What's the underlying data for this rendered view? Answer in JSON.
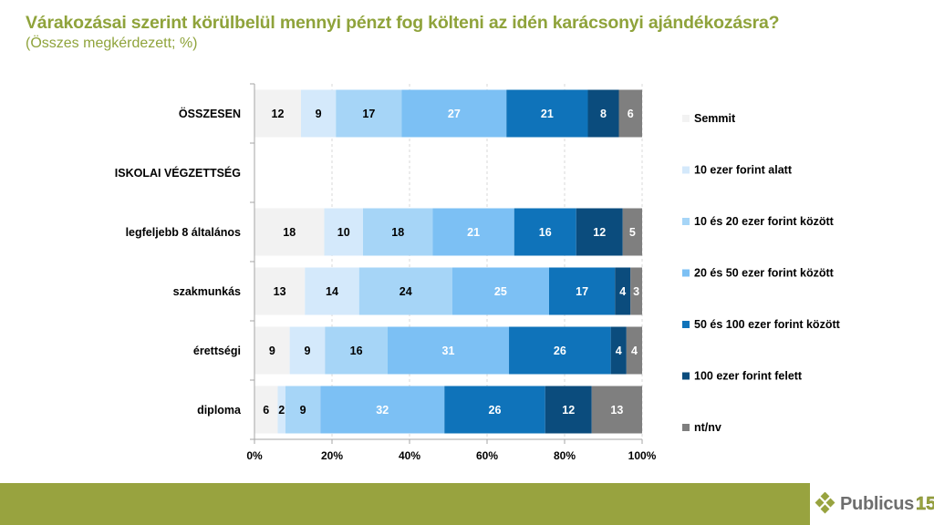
{
  "header": {
    "title": "Várakozásai szerint körülbelül mennyi pénzt fog költeni az idén karácsonyi ajándékozásra?",
    "subtitle": "(Összes megkérdezett; %)"
  },
  "footer": {
    "logo_text": "Publicus",
    "logo_number": "15",
    "band_color": "#98A33F"
  },
  "chart_data": {
    "type": "bar",
    "orientation": "horizontal",
    "stacked": "percent",
    "title": "Várakozásai szerint körülbelül mennyi pénzt fog költeni az idén karácsonyi ajándékozásra?",
    "subtitle": "(Összes megkérdezett; %)",
    "categories": [
      "ÖSSZESEN",
      "ISKOLAI VÉGZETTSÉG",
      "legfeljebb 8 általános",
      "szakmunkás",
      "érettségi",
      "diploma"
    ],
    "xlim": [
      0,
      100
    ],
    "xticks": [
      "0%",
      "20%",
      "40%",
      "60%",
      "80%",
      "100%"
    ],
    "grid": "vertical-dashed",
    "legend_position": "right",
    "series": [
      {
        "name": "Semmit",
        "color": "#F2F2F2",
        "label_color": "#000000",
        "values": [
          12,
          null,
          18,
          13,
          9,
          6
        ]
      },
      {
        "name": "10 ezer forint alatt",
        "color": "#D4E9FB",
        "label_color": "#000000",
        "values": [
          9,
          null,
          10,
          14,
          9,
          2
        ]
      },
      {
        "name": "10 és 20 ezer forint között",
        "color": "#A6D5F7",
        "label_color": "#000000",
        "values": [
          17,
          null,
          18,
          24,
          16,
          9
        ]
      },
      {
        "name": "20 és 50 ezer forint között",
        "color": "#7CC0F4",
        "label_color": "#FFFFFF",
        "values": [
          27,
          null,
          21,
          25,
          31,
          32
        ]
      },
      {
        "name": "50 és 100 ezer forint között",
        "color": "#0F73BA",
        "label_color": "#FFFFFF",
        "values": [
          21,
          null,
          16,
          17,
          26,
          26
        ]
      },
      {
        "name": "100 ezer forint felett",
        "color": "#0B4C7D",
        "label_color": "#FFFFFF",
        "values": [
          8,
          null,
          12,
          4,
          4,
          12
        ]
      },
      {
        "name": "nt/nv",
        "color": "#7F7F7F",
        "label_color": "#FFFFFF",
        "values": [
          6,
          null,
          5,
          3,
          4,
          13
        ]
      }
    ]
  }
}
